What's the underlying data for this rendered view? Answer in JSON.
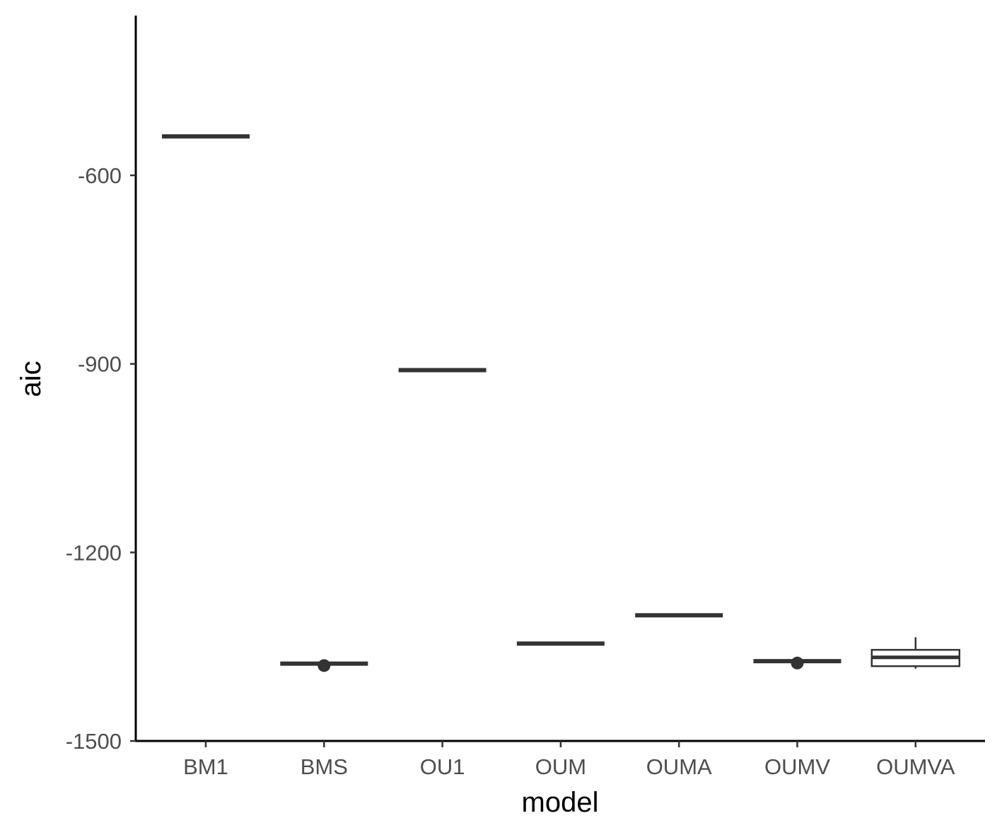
{
  "chart_data": {
    "type": "boxplot",
    "title": "",
    "xlabel": "model",
    "ylabel": "aic",
    "ylim": [
      -1500,
      -350
    ],
    "y_ticks": [
      -600,
      -900,
      -1200,
      -1500
    ],
    "categories": [
      "BM1",
      "BMS",
      "OU1",
      "OUM",
      "OUMA",
      "OUMV",
      "OUMVA"
    ],
    "boxes": [
      {
        "category": "BM1",
        "min": -538,
        "q1": -538,
        "median": -538,
        "q3": -538,
        "max": -538,
        "outliers": []
      },
      {
        "category": "BMS",
        "min": -1377,
        "q1": -1377,
        "median": -1377,
        "q3": -1377,
        "max": -1377,
        "outliers": [
          -1380
        ]
      },
      {
        "category": "OU1",
        "min": -910,
        "q1": -910,
        "median": -910,
        "q3": -910,
        "max": -910,
        "outliers": []
      },
      {
        "category": "OUM",
        "min": -1345,
        "q1": -1345,
        "median": -1345,
        "q3": -1345,
        "max": -1345,
        "outliers": []
      },
      {
        "category": "OUMA",
        "min": -1300,
        "q1": -1300,
        "median": -1300,
        "q3": -1300,
        "max": -1300,
        "outliers": []
      },
      {
        "category": "OUMV",
        "min": -1373,
        "q1": -1373,
        "median": -1373,
        "q3": -1373,
        "max": -1373,
        "outliers": [
          -1376
        ]
      },
      {
        "category": "OUMVA",
        "min": -1385,
        "q1": -1381,
        "median": -1367,
        "q3": -1355,
        "max": -1335,
        "outliers": []
      }
    ],
    "grid": false,
    "legend": "none",
    "colors": {
      "box": "#333333",
      "axis": "#000000",
      "tick_text": "#4d4d4d",
      "background": "#ffffff"
    }
  }
}
